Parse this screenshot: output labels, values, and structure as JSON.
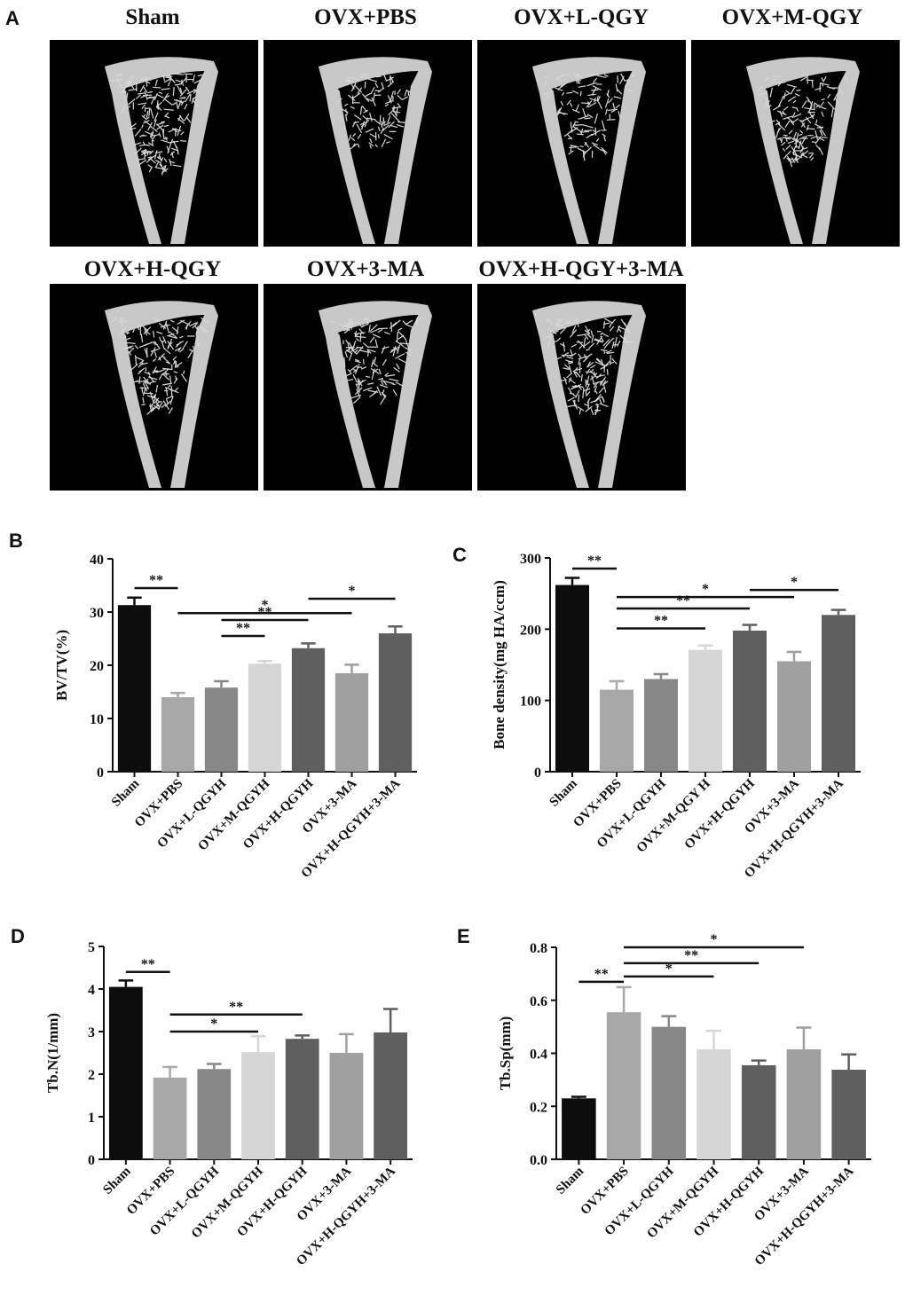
{
  "panels": {
    "A": "A",
    "B": "B",
    "C": "C",
    "D": "D",
    "E": "E"
  },
  "microct": {
    "groups": [
      "Sham",
      "OVX+PBS",
      "OVX+L-QGY",
      "OVX+M-QGY",
      "OVX+H-QGY",
      "OVX+3-MA",
      "OVX+H-QGY+3-MA"
    ],
    "density": [
      0.95,
      0.35,
      0.45,
      0.65,
      0.8,
      0.55,
      0.9
    ]
  },
  "chart_data": [
    {
      "panel": "B",
      "type": "bar",
      "ylabel": "BV/TV(%)",
      "ylim": [
        0,
        40
      ],
      "yticks": [
        0,
        10,
        20,
        30,
        40
      ],
      "categories": [
        "Sham",
        "OVX+PBS",
        "OVX+L-QGYH",
        "OVX+M-QGYH",
        "OVX+H-QGYH",
        "OVX+3-MA",
        "OVX+H-QGYH+3-MA"
      ],
      "values": [
        31.3,
        14.0,
        15.8,
        20.3,
        23.2,
        18.5,
        26.0
      ],
      "errors": [
        1.4,
        0.8,
        1.2,
        0.5,
        0.9,
        1.6,
        1.3
      ],
      "colors": [
        "#0d0d0d",
        "#a8a8a8",
        "#888888",
        "#d6d6d6",
        "#5f5f5f",
        "#a0a0a0",
        "#5f5f5f"
      ],
      "significance": [
        {
          "from": 0,
          "to": 1,
          "label": "**",
          "y": 34.5
        },
        {
          "from": 2,
          "to": 3,
          "label": "**",
          "y": 25.5
        },
        {
          "from": 2,
          "to": 4,
          "label": "**",
          "y": 28.5
        },
        {
          "from": 1,
          "to": 5,
          "label": "*",
          "y": 29.8
        },
        {
          "from": 4,
          "to": 6,
          "label": "*",
          "y": 32.5
        }
      ]
    },
    {
      "panel": "C",
      "type": "bar",
      "ylabel": "Bone density(mg HA/ccm)",
      "ylim": [
        0,
        300
      ],
      "yticks": [
        0,
        100,
        200,
        300
      ],
      "categories": [
        "Sham",
        "OVX+PBS",
        "OVX+L-QGYH",
        "OVX+M-QGY H",
        "OVX+H-QGYH",
        "OVX+3-MA",
        "OVX+H-QGYH+3-MA"
      ],
      "values": [
        262,
        115,
        130,
        171,
        198,
        155,
        220
      ],
      "errors": [
        10,
        12,
        7,
        6,
        8,
        13,
        7
      ],
      "colors": [
        "#0d0d0d",
        "#a8a8a8",
        "#888888",
        "#d6d6d6",
        "#5f5f5f",
        "#a0a0a0",
        "#5f5f5f"
      ],
      "significance": [
        {
          "from": 0,
          "to": 1,
          "label": "**",
          "y": 285
        },
        {
          "from": 1,
          "to": 3,
          "label": "**",
          "y": 201
        },
        {
          "from": 1,
          "to": 4,
          "label": "**",
          "y": 229
        },
        {
          "from": 1,
          "to": 5,
          "label": "*",
          "y": 245
        },
        {
          "from": 4,
          "to": 6,
          "label": "*",
          "y": 255
        }
      ]
    },
    {
      "panel": "D",
      "type": "bar",
      "ylabel": "Tb.N(1/mm)",
      "ylim": [
        0,
        5
      ],
      "yticks": [
        0,
        1,
        2,
        3,
        4,
        5
      ],
      "categories": [
        "Sham",
        "OVX+PBS",
        "OVX+L-QGYH",
        "OVX+M-QGYH",
        "OVX+H-QGYH",
        "OVX+3-MA",
        "OVX+H-QGYH+3-MA"
      ],
      "values": [
        4.05,
        1.92,
        2.12,
        2.52,
        2.83,
        2.5,
        2.98
      ],
      "errors": [
        0.15,
        0.25,
        0.12,
        0.37,
        0.08,
        0.44,
        0.55
      ],
      "colors": [
        "#0d0d0d",
        "#a8a8a8",
        "#888888",
        "#d6d6d6",
        "#5f5f5f",
        "#a0a0a0",
        "#5f5f5f"
      ],
      "significance": [
        {
          "from": 0,
          "to": 1,
          "label": "**",
          "y": 4.4
        },
        {
          "from": 1,
          "to": 3,
          "label": "*",
          "y": 3.0
        },
        {
          "from": 1,
          "to": 4,
          "label": "**",
          "y": 3.4
        }
      ]
    },
    {
      "panel": "E",
      "type": "bar",
      "ylabel": "Tb.Sp(mm)",
      "ylim": [
        0,
        0.8
      ],
      "yticks": [
        0.0,
        0.2,
        0.4,
        0.6,
        0.8
      ],
      "yticklabels": [
        "0.0",
        "0.2",
        "0.4",
        "0.6",
        "0.8"
      ],
      "categories": [
        "Sham",
        "OVX+PBS",
        "OVX+L-QGYH",
        "OVX+M-QGYH",
        "OVX+H-QGYH",
        "OVX+3-MA",
        "OVX+H-QGYH+3-MA"
      ],
      "values": [
        0.23,
        0.555,
        0.5,
        0.415,
        0.355,
        0.415,
        0.338
      ],
      "errors": [
        0.006,
        0.095,
        0.04,
        0.07,
        0.018,
        0.082,
        0.058
      ],
      "colors": [
        "#0d0d0d",
        "#a8a8a8",
        "#888888",
        "#d6d6d6",
        "#5f5f5f",
        "#a0a0a0",
        "#5f5f5f"
      ],
      "significance": [
        {
          "from": 0,
          "to": 1,
          "label": "**",
          "y": 0.67
        },
        {
          "from": 1,
          "to": 3,
          "label": "*",
          "y": 0.69
        },
        {
          "from": 1,
          "to": 4,
          "label": "**",
          "y": 0.74
        },
        {
          "from": 1,
          "to": 5,
          "label": "*",
          "y": 0.8
        }
      ]
    }
  ]
}
